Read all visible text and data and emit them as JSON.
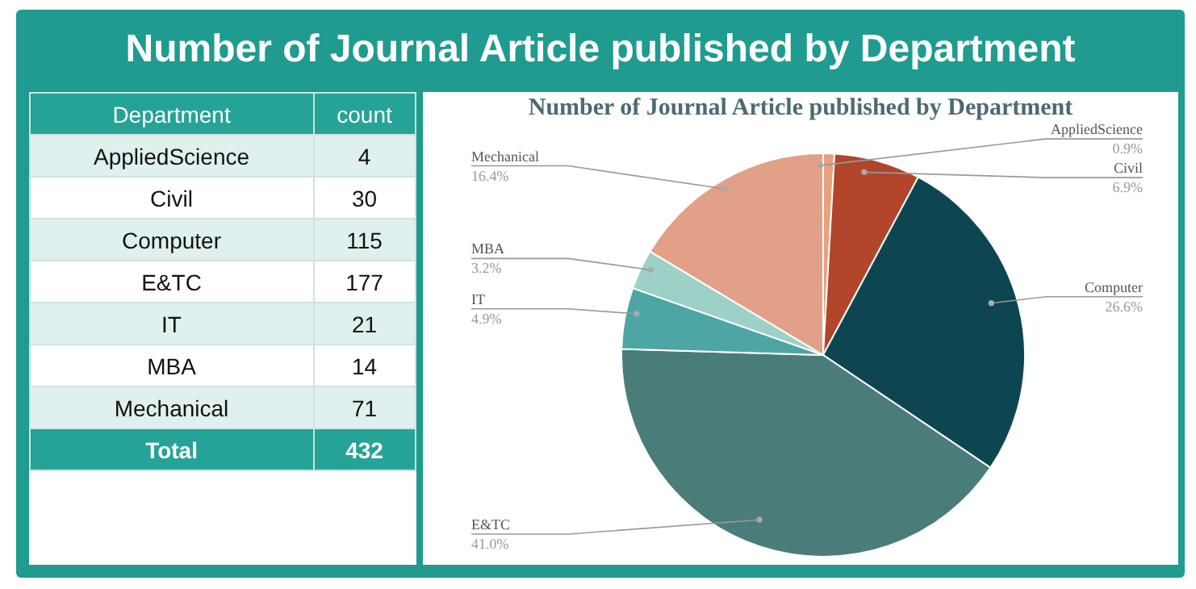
{
  "chart_data": [
    {
      "type": "other",
      "title": "Number of Journal Article published by Department",
      "xlabel": "Department",
      "ylabel": "count",
      "categories": [
        "AppliedScience",
        "Civil",
        "Computer",
        "E&TC",
        "IT",
        "MBA",
        "Mechanical"
      ],
      "values": [
        4,
        30,
        115,
        177,
        21,
        14,
        71
      ],
      "data_labels": true,
      "annotations": [
        "Total"
      ],
      "totals": [
        "432"
      ]
    },
    {
      "type": "pie",
      "title": "Number of Journal Article published by Department",
      "categories": [
        "AppliedScience",
        "Civil",
        "Computer",
        "E&TC",
        "IT",
        "MBA",
        "Mechanical"
      ],
      "values": [
        0.9,
        6.9,
        26.6,
        41.0,
        4.9,
        3.2,
        16.4
      ],
      "value_labels": [
        "0.9%",
        "6.9%",
        "26.6%",
        "41.0%",
        "4.9%",
        "3.2%",
        "16.4%"
      ],
      "colors": [
        "#e8a07f",
        "#b3452b",
        "#0d4650",
        "#4a7d7a",
        "#4ea6a4",
        "#9dd1c8",
        "#e2a089"
      ]
    }
  ]
}
